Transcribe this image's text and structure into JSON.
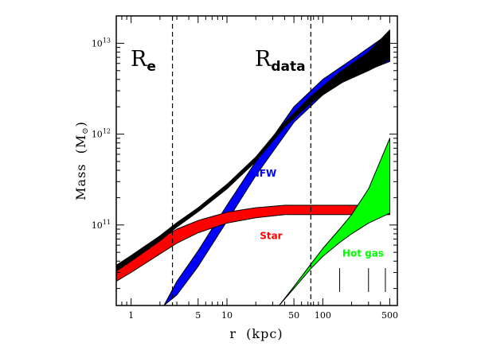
{
  "chart_data": {
    "type": "area",
    "x_scale": "log",
    "y_scale": "log",
    "xlim": [
      0.7,
      600
    ],
    "ylim": [
      13000000000,
      20000000000000
    ],
    "xlabel_main": "r",
    "xlabel_unit": "(kpc)",
    "ylabel_main": "Mass",
    "ylabel_unit_prefix": "(M",
    "ylabel_unit_symbol": "⊙",
    "ylabel_unit_suffix": ")",
    "x_ticks_major": [
      {
        "value": 1,
        "label": "1"
      },
      {
        "value": 5,
        "label": "5"
      },
      {
        "value": 10,
        "label": "10"
      },
      {
        "value": 50,
        "label": "50"
      },
      {
        "value": 100,
        "label": "100"
      },
      {
        "value": 500,
        "label": "500"
      }
    ],
    "y_ticks_major": [
      {
        "value": 100000000000,
        "base": "10",
        "exp": "11"
      },
      {
        "value": 1000000000000,
        "base": "10",
        "exp": "12"
      },
      {
        "value": 10000000000000,
        "base": "10",
        "exp": "13"
      }
    ],
    "vertical_markers": [
      {
        "x": 2.7,
        "main": "R",
        "sub": "e"
      },
      {
        "x": 75,
        "main": "R",
        "sub": "data"
      }
    ],
    "bin_marks_x": [
      150,
      300,
      450
    ],
    "series": [
      {
        "name": "NFW",
        "color": "#0000ff",
        "x": [
          2.2,
          3,
          5,
          10,
          20,
          50,
          100,
          200,
          500
        ],
        "lower": [
          13000000000,
          17000000000,
          35000000000,
          110000000000,
          350000000000,
          1350000000000,
          2700000000000,
          4300000000000,
          6300000000000
        ],
        "upper": [
          13000000000,
          24000000000,
          52000000000,
          165000000000,
          500000000000,
          2000000000000,
          4000000000000,
          6600000000000,
          13000000000000
        ]
      },
      {
        "name": "Star",
        "color": "#ff0000",
        "x": [
          0.7,
          1,
          2,
          3,
          5,
          10,
          20,
          40,
          100,
          200,
          500
        ],
        "lower": [
          24000000000,
          30000000000,
          48000000000,
          63000000000,
          82000000000,
          105000000000,
          120000000000,
          130000000000,
          130000000000,
          130000000000,
          130000000000
        ],
        "upper": [
          32000000000,
          42000000000,
          70000000000,
          90000000000,
          112000000000,
          138000000000,
          155000000000,
          165000000000,
          165000000000,
          165000000000,
          165000000000
        ]
      },
      {
        "name": "",
        "color": "#000000",
        "x": [
          0.7,
          1,
          2,
          3,
          5,
          10,
          20,
          40,
          75,
          150,
          300,
          500
        ],
        "lower": [
          31000000000,
          40000000000,
          67000000000,
          95000000000,
          140000000000,
          250000000000,
          500000000000,
          1200000000000,
          2200000000000,
          3600000000000,
          5000000000000,
          6600000000000
        ],
        "upper": [
          36000000000,
          46000000000,
          76000000000,
          106000000000,
          155000000000,
          280000000000,
          560000000000,
          1350000000000,
          2600000000000,
          4800000000000,
          8000000000000,
          14000000000000
        ]
      },
      {
        "name": "Hot gas",
        "color": "#00ff00",
        "x": [
          35,
          50,
          75,
          100,
          150,
          200,
          300,
          500
        ],
        "lower": [
          13000000000,
          20000000000,
          33000000000,
          45000000000,
          64000000000,
          80000000000,
          105000000000,
          135000000000
        ],
        "upper": [
          13000000000,
          21000000000,
          37000000000,
          55000000000,
          90000000000,
          130000000000,
          250000000000,
          900000000000
        ]
      }
    ],
    "label_positions": [
      {
        "name": "NFW",
        "x": 18,
        "y": 340000000000
      },
      {
        "name": "Star",
        "x": 22,
        "y": 70000000000
      },
      {
        "name": "Hot gas",
        "x": 160,
        "y": 45000000000
      }
    ]
  }
}
